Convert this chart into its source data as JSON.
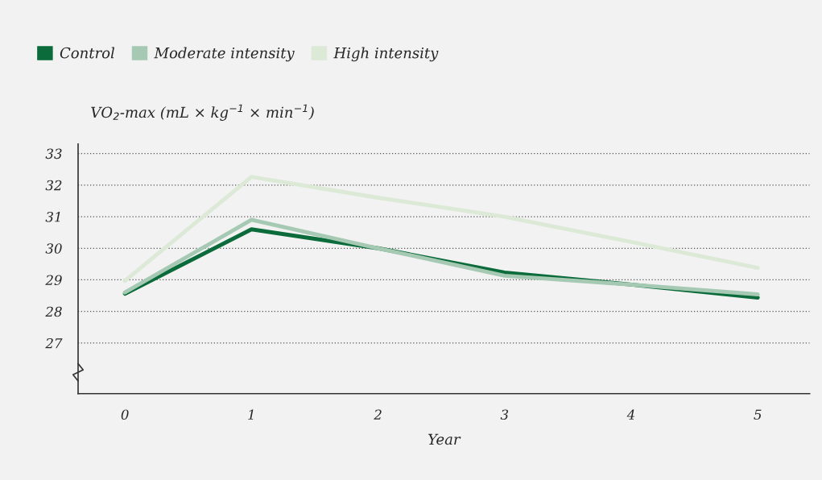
{
  "chart_data": {
    "type": "line",
    "xlabel": "Year",
    "ylabel": "VO$_{2}$-max (mL × kg$^{−1}$ × min$^{−1}$)",
    "x": [
      0,
      1,
      2,
      3,
      4,
      5
    ],
    "series": [
      {
        "name": "Control",
        "color": "#0b6b3a",
        "values": [
          28.56,
          30.6,
          30.0,
          29.23,
          28.85,
          28.44
        ]
      },
      {
        "name": "Moderate intensity",
        "color": "#a6c9b4",
        "values": [
          28.6,
          30.9,
          30.0,
          29.13,
          28.85,
          28.54
        ]
      },
      {
        "name": "High intensity",
        "color": "#dce9d6",
        "values": [
          28.97,
          32.26,
          31.6,
          31.0,
          30.2,
          29.38
        ]
      }
    ],
    "xlim": [
      -0.37,
      5.41
    ],
    "ylim": [
      25.4,
      33.3
    ],
    "xticks": [
      0,
      1,
      2,
      3,
      4,
      5
    ],
    "yticks": [
      27,
      28,
      29,
      30,
      31,
      32,
      33
    ],
    "grid": "y",
    "legend": "top left",
    "marker": "none",
    "line_style": "solid"
  }
}
